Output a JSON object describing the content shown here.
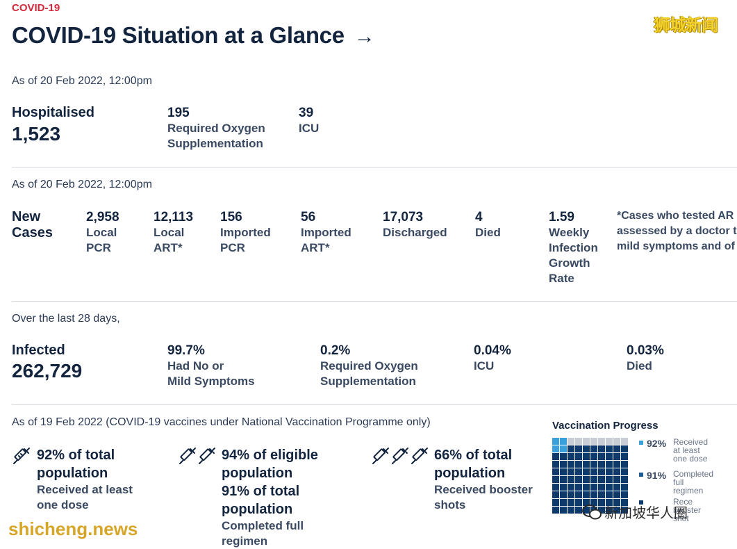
{
  "header": {
    "tag": "COVID-19",
    "title": "COVID-19 Situation at a Glance",
    "arrow": "→",
    "logo": "狮城新闻"
  },
  "hospital": {
    "as_of": "As of 20 Feb 2022, 12:00pm",
    "label": "Hospitalised",
    "value": "1,523",
    "oxygen_value": "195",
    "oxygen_label_1": "Required Oxygen",
    "oxygen_label_2": "Supplementation",
    "icu_value": "39",
    "icu_label": "ICU"
  },
  "cases": {
    "as_of": "As of 20 Feb 2022, 12:00pm",
    "label_1": "New",
    "label_2": "Cases",
    "items": [
      {
        "value": "2,958",
        "l1": "Local",
        "l2": "PCR",
        "l3": "",
        "l4": ""
      },
      {
        "value": "12,113",
        "l1": "Local",
        "l2": "ART*",
        "l3": "",
        "l4": ""
      },
      {
        "value": "156",
        "l1": "Imported",
        "l2": "PCR",
        "l3": "",
        "l4": ""
      },
      {
        "value": "56",
        "l1": "Imported",
        "l2": "ART*",
        "l3": "",
        "l4": ""
      },
      {
        "value": "17,073",
        "l1": "Discharged",
        "l2": "",
        "l3": "",
        "l4": ""
      },
      {
        "value": "4",
        "l1": "Died",
        "l2": "",
        "l3": "",
        "l4": ""
      },
      {
        "value": "1.59",
        "l1": "Weekly",
        "l2": "Infection",
        "l3": "Growth",
        "l4": "Rate"
      }
    ],
    "note_1": "*Cases who tested AR",
    "note_2": "assessed by a doctor t",
    "note_3": "mild symptoms and of"
  },
  "infected": {
    "as_of": "Over the last 28 days,",
    "label": "Infected",
    "value": "262,729",
    "items": [
      {
        "value": "99.7%",
        "l1": "Had No or",
        "l2": "Mild Symptoms"
      },
      {
        "value": "0.2%",
        "l1": "Required Oxygen",
        "l2": "Supplementation"
      },
      {
        "value": "0.04%",
        "l1": "ICU",
        "l2": ""
      },
      {
        "value": "0.03%",
        "l1": "Died",
        "l2": ""
      }
    ]
  },
  "vaccination": {
    "as_of": "As of 19 Feb 2022 (COVID-19 vaccines under National Vaccination Programme only)",
    "col1": {
      "h1": "92% of total",
      "h2": "population",
      "d1": "Received at least",
      "d2": "one dose"
    },
    "col2": {
      "h1": "94% of eligible",
      "h2": "population",
      "h3": "91% of total",
      "h4": "population",
      "d1": "Completed full",
      "d2": "regimen"
    },
    "col3": {
      "h1": "66% of total",
      "h2": "population",
      "d1": "Received booster",
      "d2": "shots"
    },
    "progress": {
      "title": "Vaccination Progress",
      "legend": [
        {
          "pct": "92%",
          "l1": "Received",
          "l2": "at least",
          "l3": "one dose",
          "color": "#3aa0dc"
        },
        {
          "pct": "91%",
          "l1": "Completed",
          "l2": "full",
          "l3": "regimen",
          "color": "#1b5c95"
        },
        {
          "pct": "",
          "l1": "Rece",
          "l2": "booster",
          "l3": "shot",
          "color": "#0d3a6a"
        }
      ]
    }
  },
  "watermark": {
    "site": "shicheng.news",
    "wechat": "新加坡华人圈"
  },
  "colors": {
    "accent_red": "#d6273a",
    "navy": "#13243f",
    "grid_light": "#c9ced6",
    "grid_mid": "#3aa0dc",
    "grid_dark": "#0d3a6a"
  }
}
